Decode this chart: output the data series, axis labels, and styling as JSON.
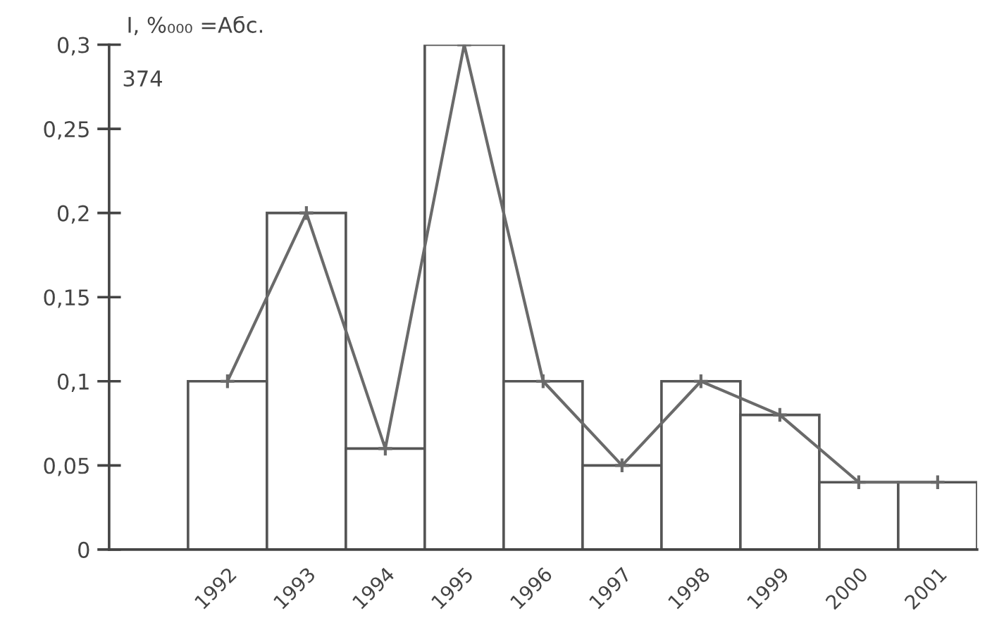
{
  "chart_data": {
    "type": "bar",
    "ylabel": "I, %₀₀₀ =Абс.",
    "annotations": [
      "374"
    ],
    "categories": [
      "1992",
      "1993",
      "1994",
      "1995",
      "1996",
      "1997",
      "1998",
      "1999",
      "2000",
      "2001"
    ],
    "series": [
      {
        "color": "#ffffff",
        "values": [
          0.1,
          0.2,
          0.06,
          0.3,
          0.1,
          0.05,
          0.1,
          0.08,
          0.04,
          0.04
        ]
      },
      {
        "type": "line",
        "color": "#6a6a6a",
        "marker": "cross",
        "values": [
          0.1,
          0.2,
          0.06,
          0.3,
          0.1,
          0.05,
          0.1,
          0.08,
          0.04,
          0.04
        ]
      }
    ],
    "ylim": [
      0,
      0.3
    ],
    "yticks": [
      {
        "value": 0,
        "label": "0"
      },
      {
        "value": 0.05,
        "label": "0,05"
      },
      {
        "value": 0.1,
        "label": "0,1"
      },
      {
        "value": 0.15,
        "label": "0,15"
      },
      {
        "value": 0.2,
        "label": "0,2"
      },
      {
        "value": 0.25,
        "label": "0,25"
      },
      {
        "value": 0.3,
        "label": "0,3"
      }
    ],
    "grid": false,
    "legend": false
  }
}
